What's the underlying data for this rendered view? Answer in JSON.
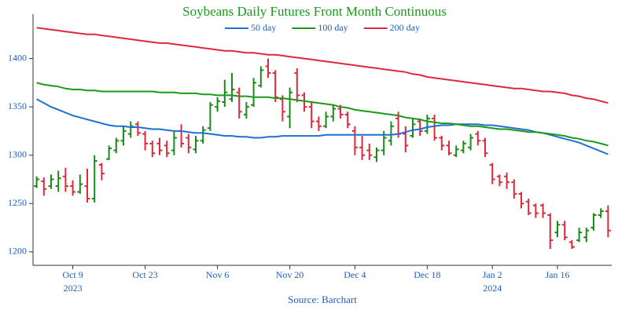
{
  "chart_data": {
    "type": "ohlc",
    "title": "Soybeans Daily Futures Front Month Continuous",
    "source": "Source: Barchart",
    "x": [
      "2023-10-02",
      "2023-10-03",
      "2023-10-04",
      "2023-10-05",
      "2023-10-06",
      "2023-10-09",
      "2023-10-10",
      "2023-10-11",
      "2023-10-12",
      "2023-10-13",
      "2023-10-16",
      "2023-10-17",
      "2023-10-18",
      "2023-10-19",
      "2023-10-20",
      "2023-10-23",
      "2023-10-24",
      "2023-10-25",
      "2023-10-26",
      "2023-10-27",
      "2023-10-30",
      "2023-10-31",
      "2023-11-01",
      "2023-11-02",
      "2023-11-03",
      "2023-11-06",
      "2023-11-07",
      "2023-11-08",
      "2023-11-09",
      "2023-11-10",
      "2023-11-13",
      "2023-11-14",
      "2023-11-15",
      "2023-11-16",
      "2023-11-17",
      "2023-11-20",
      "2023-11-21",
      "2023-11-22",
      "2023-11-24",
      "2023-11-27",
      "2023-11-28",
      "2023-11-29",
      "2023-11-30",
      "2023-12-01",
      "2023-12-04",
      "2023-12-05",
      "2023-12-06",
      "2023-12-07",
      "2023-12-08",
      "2023-12-11",
      "2023-12-12",
      "2023-12-13",
      "2023-12-14",
      "2023-12-15",
      "2023-12-18",
      "2023-12-19",
      "2023-12-20",
      "2023-12-21",
      "2023-12-22",
      "2023-12-26",
      "2023-12-27",
      "2023-12-28",
      "2023-12-29",
      "2024-01-02",
      "2024-01-03",
      "2024-01-04",
      "2024-01-05",
      "2024-01-08",
      "2024-01-09",
      "2024-01-10",
      "2024-01-11",
      "2024-01-12",
      "2024-01-16",
      "2024-01-17",
      "2024-01-18",
      "2024-01-19",
      "2024-01-22",
      "2024-01-23",
      "2024-01-24",
      "2024-01-25"
    ],
    "ohlc": {
      "up_color": "#1a8a1a",
      "down_color": "#dc2a3c",
      "open": [
        1268,
        1273,
        1268,
        1268,
        1278,
        1268,
        1262,
        1268,
        1255,
        1290,
        1296,
        1305,
        1315,
        1322,
        1332,
        1322,
        1312,
        1312,
        1310,
        1305,
        1325,
        1318,
        1306,
        1315,
        1328,
        1350,
        1355,
        1358,
        1365,
        1342,
        1352,
        1372,
        1392,
        1385,
        1358,
        1340,
        1385,
        1362,
        1350,
        1335,
        1330,
        1340,
        1348,
        1342,
        1325,
        1308,
        1305,
        1298,
        1305,
        1315,
        1338,
        1322,
        1320,
        1335,
        1325,
        1338,
        1318,
        1310,
        1300,
        1305,
        1308,
        1322,
        1315,
        1290,
        1278,
        1278,
        1272,
        1260,
        1252,
        1248,
        1248,
        1238,
        1220,
        1228,
        1210,
        1212,
        1215,
        1225,
        1238,
        1242
      ],
      "high": [
        1278,
        1277,
        1280,
        1284,
        1287,
        1274,
        1280,
        1286,
        1300,
        1292,
        1310,
        1318,
        1330,
        1335,
        1335,
        1325,
        1315,
        1318,
        1315,
        1325,
        1332,
        1322,
        1320,
        1330,
        1355,
        1360,
        1378,
        1385,
        1370,
        1355,
        1380,
        1392,
        1400,
        1388,
        1362,
        1370,
        1390,
        1365,
        1355,
        1340,
        1345,
        1352,
        1352,
        1345,
        1330,
        1320,
        1312,
        1308,
        1325,
        1335,
        1345,
        1330,
        1338,
        1338,
        1342,
        1342,
        1320,
        1315,
        1310,
        1315,
        1322,
        1325,
        1318,
        1292,
        1280,
        1282,
        1275,
        1262,
        1255,
        1250,
        1250,
        1240,
        1232,
        1232,
        1212,
        1225,
        1225,
        1240,
        1245,
        1248
      ],
      "low": [
        1266,
        1258,
        1265,
        1262,
        1262,
        1258,
        1260,
        1251,
        1251,
        1274,
        1295,
        1302,
        1310,
        1318,
        1320,
        1305,
        1298,
        1300,
        1298,
        1300,
        1308,
        1302,
        1302,
        1312,
        1325,
        1345,
        1350,
        1355,
        1338,
        1338,
        1350,
        1370,
        1380,
        1355,
        1335,
        1328,
        1355,
        1345,
        1328,
        1325,
        1328,
        1335,
        1338,
        1328,
        1300,
        1295,
        1295,
        1293,
        1300,
        1310,
        1318,
        1303,
        1318,
        1320,
        1322,
        1315,
        1305,
        1300,
        1298,
        1302,
        1305,
        1310,
        1298,
        1270,
        1268,
        1265,
        1255,
        1245,
        1238,
        1235,
        1235,
        1203,
        1215,
        1212,
        1203,
        1210,
        1210,
        1222,
        1235,
        1215
      ],
      "close": [
        1275,
        1265,
        1275,
        1276,
        1268,
        1262,
        1270,
        1255,
        1294,
        1281,
        1307,
        1315,
        1325,
        1330,
        1323,
        1312,
        1302,
        1305,
        1302,
        1318,
        1312,
        1308,
        1315,
        1326,
        1352,
        1356,
        1365,
        1368,
        1345,
        1350,
        1375,
        1388,
        1385,
        1360,
        1345,
        1365,
        1362,
        1350,
        1335,
        1330,
        1340,
        1348,
        1342,
        1332,
        1308,
        1300,
        1300,
        1305,
        1318,
        1330,
        1322,
        1310,
        1332,
        1325,
        1338,
        1318,
        1310,
        1302,
        1306,
        1312,
        1318,
        1315,
        1302,
        1275,
        1272,
        1272,
        1260,
        1250,
        1240,
        1240,
        1240,
        1212,
        1228,
        1215,
        1205,
        1220,
        1222,
        1238,
        1242,
        1222
      ]
    },
    "series": [
      {
        "name": "50 day",
        "color": "#1f6fd6",
        "values": [
          1358,
          1354,
          1350,
          1347,
          1344,
          1341,
          1339,
          1337,
          1335,
          1333,
          1331,
          1330,
          1330,
          1329,
          1329,
          1328,
          1327,
          1327,
          1326,
          1325,
          1325,
          1324,
          1323,
          1323,
          1322,
          1321,
          1320,
          1320,
          1319,
          1319,
          1318,
          1318,
          1319,
          1319,
          1320,
          1320,
          1320,
          1320,
          1320,
          1320,
          1321,
          1321,
          1321,
          1321,
          1321,
          1321,
          1321,
          1321,
          1321,
          1321,
          1322,
          1324,
          1326,
          1327,
          1329,
          1330,
          1331,
          1331,
          1332,
          1332,
          1332,
          1332,
          1331,
          1331,
          1330,
          1329,
          1328,
          1327,
          1326,
          1324,
          1323,
          1321,
          1319,
          1317,
          1315,
          1313,
          1310,
          1307,
          1304,
          1301
        ]
      },
      {
        "name": "100 day",
        "color": "#1a9a1a",
        "values": [
          1375,
          1373,
          1372,
          1371,
          1369,
          1368,
          1368,
          1367,
          1367,
          1366,
          1366,
          1366,
          1366,
          1366,
          1366,
          1366,
          1366,
          1365,
          1365,
          1365,
          1364,
          1364,
          1364,
          1363,
          1363,
          1362,
          1362,
          1362,
          1361,
          1361,
          1360,
          1360,
          1360,
          1359,
          1359,
          1358,
          1357,
          1356,
          1355,
          1354,
          1353,
          1352,
          1350,
          1349,
          1347,
          1346,
          1345,
          1344,
          1343,
          1342,
          1341,
          1339,
          1338,
          1337,
          1335,
          1334,
          1333,
          1333,
          1332,
          1331,
          1330,
          1330,
          1329,
          1328,
          1327,
          1327,
          1326,
          1325,
          1324,
          1324,
          1323,
          1322,
          1321,
          1320,
          1318,
          1317,
          1315,
          1314,
          1312,
          1310
        ]
      },
      {
        "name": "200 day",
        "color": "#dc2a3c",
        "values": [
          1432,
          1431,
          1430,
          1429,
          1428,
          1427,
          1426,
          1425,
          1425,
          1424,
          1423,
          1422,
          1421,
          1420,
          1419,
          1418,
          1417,
          1416,
          1416,
          1415,
          1414,
          1413,
          1412,
          1411,
          1410,
          1409,
          1408,
          1408,
          1407,
          1406,
          1406,
          1405,
          1404,
          1404,
          1403,
          1402,
          1401,
          1400,
          1399,
          1398,
          1397,
          1396,
          1395,
          1394,
          1393,
          1392,
          1391,
          1390,
          1389,
          1388,
          1387,
          1386,
          1384,
          1383,
          1381,
          1380,
          1379,
          1378,
          1377,
          1376,
          1375,
          1374,
          1373,
          1372,
          1371,
          1370,
          1369,
          1369,
          1368,
          1367,
          1366,
          1366,
          1365,
          1364,
          1362,
          1361,
          1359,
          1358,
          1356,
          1354
        ]
      }
    ],
    "ylim": [
      1186,
      1446
    ],
    "yticks": [
      1200,
      1250,
      1300,
      1350,
      1400
    ],
    "xticks": [
      {
        "value": "2023-10-09",
        "label": "Oct 9",
        "year": "2023"
      },
      {
        "value": "2023-10-23",
        "label": "Oct 23"
      },
      {
        "value": "2023-11-06",
        "label": "Nov 6"
      },
      {
        "value": "2023-11-20",
        "label": "Nov 20"
      },
      {
        "value": "2023-12-04",
        "label": "Dec 4"
      },
      {
        "value": "2023-12-18",
        "label": "Dec 18"
      },
      {
        "value": "2024-01-02",
        "label": "Jan 2",
        "year": "2024"
      },
      {
        "value": "2024-01-16",
        "label": "Jan 16"
      }
    ],
    "title_color": "#1a9a1a",
    "grid": false
  }
}
